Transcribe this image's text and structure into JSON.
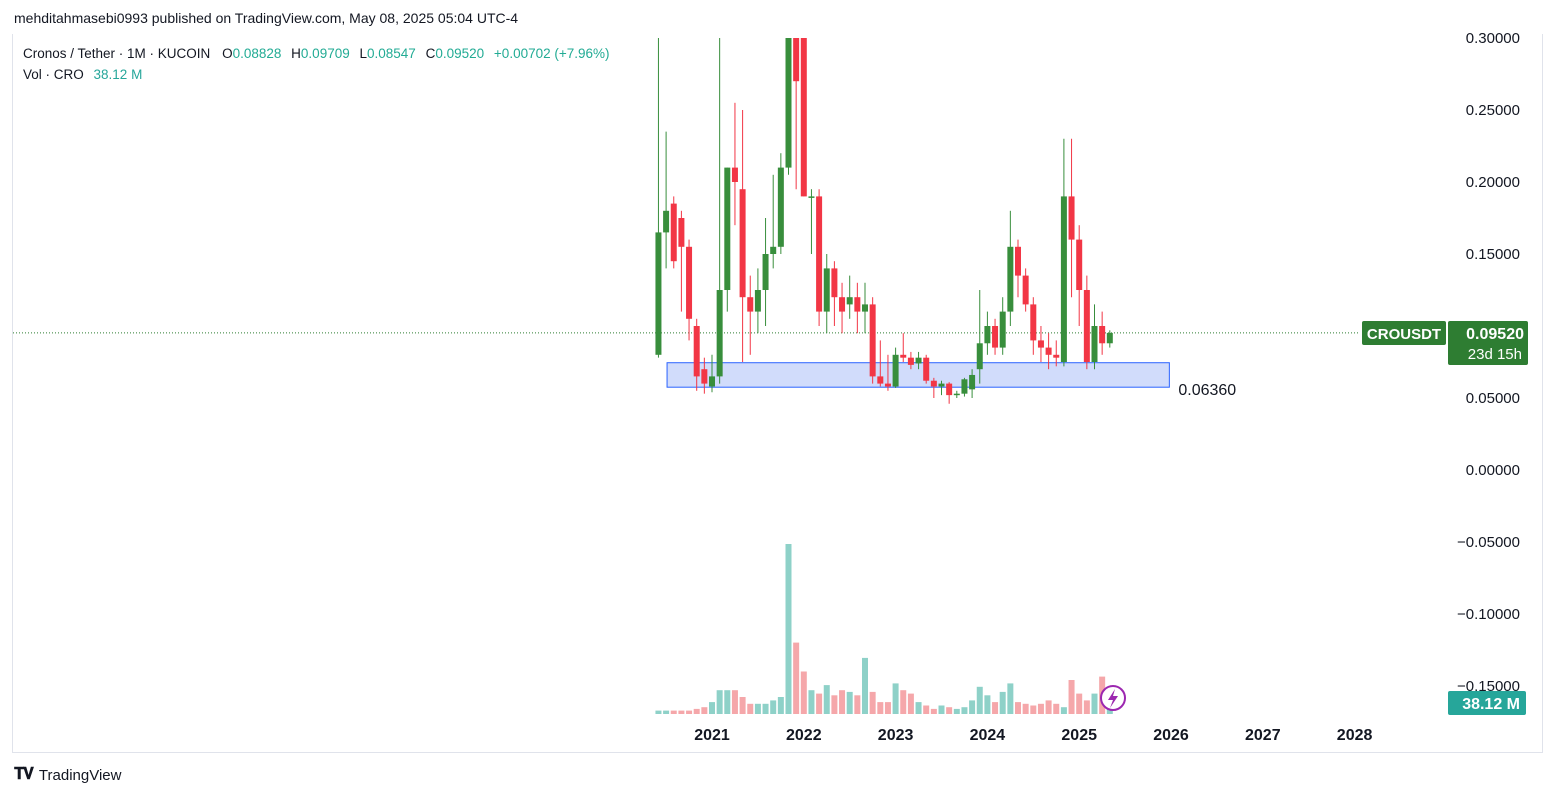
{
  "header": {
    "published_line": "mehditahmasebi0993 published on TradingView.com, May 08, 2025 05:04 UTC-4"
  },
  "legend": {
    "symbol_line": "Cronos / Tether · 1M · KUCOIN",
    "o_label": "O",
    "o_value": "0.08828",
    "h_label": "H",
    "h_value": "0.09709",
    "l_label": "L",
    "l_value": "0.08547",
    "c_label": "C",
    "c_value": "0.09520",
    "change": "+0.00702 (+7.96%)",
    "vol_label": "Vol · CRO",
    "vol_value": "38.12 M"
  },
  "price_scale": {
    "ticks": [
      "0.30000",
      "0.25000",
      "0.20000",
      "0.15000",
      "0.05000",
      "0.00000",
      "−0.05000",
      "−0.10000",
      "−0.15000"
    ]
  },
  "badges": {
    "symbol": "CROUSDT",
    "last_price": "0.09520",
    "countdown": "23d 15h",
    "volume": "38.12 M"
  },
  "annotation": {
    "zone_label": "0.06360"
  },
  "time_axis": {
    "labels": [
      "2021",
      "2022",
      "2023",
      "2024",
      "2025",
      "2026",
      "2027",
      "2028"
    ]
  },
  "footer": {
    "brand": "TradingView"
  },
  "colors": {
    "up": "#388e3c",
    "down": "#f23645",
    "vol_up": "#8ed1c8",
    "vol_down": "#f5a7aa",
    "zone_fill": "#d1dcfb",
    "zone_stroke": "#2962ff",
    "badge_green": "#2e7d32",
    "badge_teal": "#26a69a"
  },
  "chart_data": {
    "type": "candlestick",
    "title": "Cronos / Tether · 1M · KUCOIN",
    "ylim": [
      -0.17,
      0.3
    ],
    "x_axis": [
      "2021",
      "2022",
      "2023",
      "2024",
      "2025",
      "2026",
      "2027",
      "2028"
    ],
    "zone": {
      "top": 0.0745,
      "bottom": 0.0575,
      "label": "0.06360",
      "start": "2020-10",
      "end": "2025-12"
    },
    "last_price": 0.0952,
    "candles": [
      [
        "2020-06",
        0.08,
        0.3,
        0.078,
        0.165
      ],
      [
        "2020-07",
        0.165,
        0.235,
        0.14,
        0.18
      ],
      [
        "2020-08",
        0.185,
        0.19,
        0.14,
        0.145
      ],
      [
        "2020-09",
        0.175,
        0.18,
        0.11,
        0.155
      ],
      [
        "2020-10",
        0.155,
        0.16,
        0.09,
        0.105
      ],
      [
        "2020-11",
        0.1,
        0.105,
        0.055,
        0.065
      ],
      [
        "2020-12",
        0.07,
        0.078,
        0.053,
        0.06
      ],
      [
        "2021-01",
        0.058,
        0.08,
        0.054,
        0.065
      ],
      [
        "2021-02",
        0.065,
        0.3,
        0.06,
        0.125
      ],
      [
        "2021-03",
        0.125,
        0.21,
        0.11,
        0.21
      ],
      [
        "2021-04",
        0.21,
        0.255,
        0.17,
        0.2
      ],
      [
        "2021-05",
        0.195,
        0.25,
        0.075,
        0.12
      ],
      [
        "2021-06",
        0.12,
        0.135,
        0.08,
        0.11
      ],
      [
        "2021-07",
        0.11,
        0.14,
        0.095,
        0.125
      ],
      [
        "2021-08",
        0.125,
        0.175,
        0.1,
        0.15
      ],
      [
        "2021-09",
        0.15,
        0.205,
        0.14,
        0.155
      ],
      [
        "2021-10",
        0.155,
        0.22,
        0.15,
        0.21
      ],
      [
        "2021-11",
        0.21,
        0.3,
        0.205,
        0.3
      ],
      [
        "2021-12",
        0.3,
        0.3,
        0.195,
        0.27
      ],
      [
        "2022-01",
        0.3,
        0.3,
        0.19,
        0.19
      ],
      [
        "2022-02",
        0.19,
        0.195,
        0.15,
        0.19
      ],
      [
        "2022-03",
        0.19,
        0.195,
        0.1,
        0.11
      ],
      [
        "2022-04",
        0.11,
        0.15,
        0.095,
        0.14
      ],
      [
        "2022-05",
        0.14,
        0.145,
        0.1,
        0.12
      ],
      [
        "2022-06",
        0.12,
        0.13,
        0.095,
        0.11
      ],
      [
        "2022-07",
        0.115,
        0.135,
        0.105,
        0.12
      ],
      [
        "2022-08",
        0.12,
        0.13,
        0.095,
        0.11
      ],
      [
        "2022-09",
        0.11,
        0.13,
        0.095,
        0.115
      ],
      [
        "2022-10",
        0.115,
        0.12,
        0.06,
        0.065
      ],
      [
        "2022-11",
        0.065,
        0.09,
        0.058,
        0.06
      ],
      [
        "2022-12",
        0.06,
        0.08,
        0.055,
        0.058
      ],
      [
        "2023-01",
        0.058,
        0.085,
        0.057,
        0.08
      ],
      [
        "2023-02",
        0.08,
        0.095,
        0.075,
        0.078
      ],
      [
        "2023-03",
        0.078,
        0.082,
        0.07,
        0.073
      ],
      [
        "2023-04",
        0.074,
        0.082,
        0.07,
        0.078
      ],
      [
        "2023-05",
        0.078,
        0.08,
        0.06,
        0.062
      ],
      [
        "2023-06",
        0.062,
        0.064,
        0.05,
        0.058
      ],
      [
        "2023-07",
        0.058,
        0.062,
        0.052,
        0.06
      ],
      [
        "2023-08",
        0.06,
        0.061,
        0.046,
        0.052
      ],
      [
        "2023-09",
        0.052,
        0.055,
        0.05,
        0.053
      ],
      [
        "2023-10",
        0.053,
        0.064,
        0.051,
        0.063
      ],
      [
        "2023-11",
        0.056,
        0.07,
        0.05,
        0.066
      ],
      [
        "2023-12",
        0.07,
        0.125,
        0.06,
        0.088
      ],
      [
        "2024-01",
        0.088,
        0.11,
        0.08,
        0.1
      ],
      [
        "2024-02",
        0.1,
        0.105,
        0.08,
        0.085
      ],
      [
        "2024-03",
        0.085,
        0.12,
        0.08,
        0.11
      ],
      [
        "2024-04",
        0.11,
        0.18,
        0.1,
        0.155
      ],
      [
        "2024-05",
        0.155,
        0.16,
        0.12,
        0.135
      ],
      [
        "2024-06",
        0.135,
        0.14,
        0.11,
        0.115
      ],
      [
        "2024-07",
        0.115,
        0.12,
        0.08,
        0.09
      ],
      [
        "2024-08",
        0.09,
        0.1,
        0.075,
        0.085
      ],
      [
        "2024-09",
        0.085,
        0.095,
        0.07,
        0.08
      ],
      [
        "2024-10",
        0.08,
        0.09,
        0.072,
        0.078
      ],
      [
        "2024-11",
        0.075,
        0.23,
        0.072,
        0.19
      ],
      [
        "2024-12",
        0.19,
        0.23,
        0.12,
        0.16
      ],
      [
        "2025-01",
        0.16,
        0.17,
        0.1,
        0.125
      ],
      [
        "2025-02",
        0.125,
        0.135,
        0.07,
        0.075
      ],
      [
        "2025-03",
        0.075,
        0.115,
        0.07,
        0.1
      ],
      [
        "2025-04",
        0.1,
        0.11,
        0.08,
        0.088
      ],
      [
        "2025-05",
        0.088,
        0.097,
        0.085,
        0.0952
      ]
    ],
    "volume_levels": [
      0.02,
      0.02,
      0.02,
      0.02,
      0.02,
      0.03,
      0.04,
      0.07,
      0.14,
      0.14,
      0.14,
      0.1,
      0.06,
      0.06,
      0.06,
      0.08,
      0.1,
      1.0,
      0.42,
      0.25,
      0.14,
      0.12,
      0.17,
      0.11,
      0.14,
      0.13,
      0.11,
      0.33,
      0.13,
      0.07,
      0.07,
      0.18,
      0.14,
      0.12,
      0.07,
      0.05,
      0.03,
      0.05,
      0.04,
      0.03,
      0.04,
      0.08,
      0.16,
      0.11,
      0.07,
      0.13,
      0.18,
      0.07,
      0.06,
      0.05,
      0.06,
      0.08,
      0.06,
      0.04,
      0.2,
      0.12,
      0.08,
      0.12,
      0.22,
      0.1
    ]
  }
}
